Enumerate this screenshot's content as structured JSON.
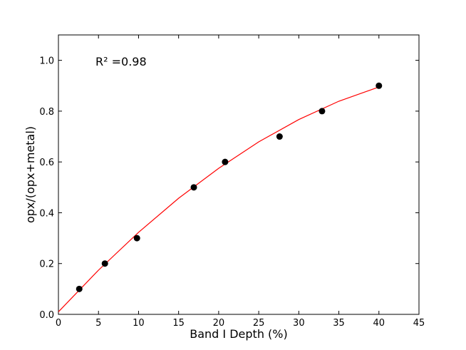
{
  "chart_data": {
    "type": "scatter",
    "annotation": "R² =0.98",
    "x_label": "Band I Depth (%)",
    "y_label": "opx/(opx+metal)",
    "x": [
      2.6,
      5.8,
      9.8,
      16.9,
      20.8,
      27.6,
      32.9,
      40.0
    ],
    "values": [
      0.1,
      0.2,
      0.3,
      0.5,
      0.6,
      0.7,
      0.8,
      0.9
    ],
    "color": "#000000",
    "fit": {
      "color": "#ff0000",
      "x": [
        0,
        5,
        10,
        15,
        20,
        25,
        30,
        35,
        40
      ],
      "values": [
        0.01,
        0.174,
        0.323,
        0.457,
        0.575,
        0.679,
        0.767,
        0.839,
        0.895
      ]
    },
    "xlim": [
      0,
      45
    ],
    "ylim": [
      0,
      1.1
    ],
    "xticks": [
      0,
      5,
      10,
      15,
      20,
      25,
      30,
      35,
      40,
      45
    ],
    "yticks": [
      {
        "value": 0,
        "label": "0.0"
      },
      0.2,
      0.4,
      0.6,
      0.8,
      {
        "value": 1,
        "label": "1.0"
      }
    ]
  }
}
